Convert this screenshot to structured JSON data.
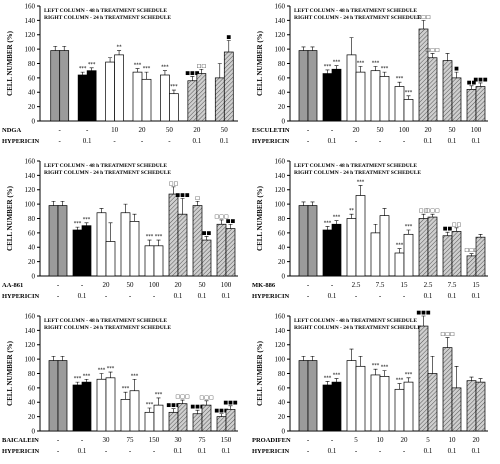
{
  "figure": {
    "colors": {
      "control": "#9b9b9b",
      "hypericin": "#000000",
      "treatment": "#ffffff",
      "combination": "#a8a8a8",
      "axis": "#000000"
    },
    "legend_note": "Bars are paired per concentration: left bar = 48 h schedule, right bar = 24 h schedule"
  },
  "chart_data": [
    {
      "type": "bar",
      "title": "LEFT COLUMN - 48 h TREATMENT SCHEDULE",
      "subtitle": "RIGHT COLUMN - 24 h TREATMENT SCHEDULE",
      "ylabel": "CELL NUMBER (%)",
      "ylim": [
        0,
        160
      ],
      "yticks": [
        "0",
        "20",
        "40",
        "60",
        "80",
        "100",
        "120",
        "140",
        "160"
      ],
      "row_labels": [
        "NDGA",
        "HYPERICIN"
      ],
      "categories": [
        {
          "drug": "-",
          "hyp": "-",
          "kind": "control",
          "v48": 98,
          "v24": 98,
          "e48": 6,
          "e24": 6,
          "s48": "",
          "s24": ""
        },
        {
          "drug": "-",
          "hyp": "0.1",
          "kind": "hypericin",
          "v48": 64,
          "v24": 70,
          "e48": 4,
          "e24": 4,
          "s48": "***",
          "s24": "***"
        },
        {
          "drug": "10",
          "hyp": "-",
          "kind": "treatment",
          "v48": 82,
          "v24": 92,
          "e48": 6,
          "e24": 6,
          "s48": "",
          "s24": "**"
        },
        {
          "drug": "20",
          "hyp": "-",
          "kind": "treatment",
          "v48": 68,
          "v24": 58,
          "e48": 5,
          "e24": 10,
          "s48": "***",
          "s24": "***"
        },
        {
          "drug": "50",
          "hyp": "-",
          "kind": "treatment",
          "v48": 64,
          "v24": 38,
          "e48": 6,
          "e24": 5,
          "s48": "***",
          "s24": "***"
        },
        {
          "drug": "20",
          "hyp": "0.1",
          "kind": "combination",
          "v48": 56,
          "v24": 66,
          "e48": 6,
          "e24": 6,
          "s48": "■■■",
          "s24": "□□"
        },
        {
          "drug": "50",
          "hyp": "0.1",
          "kind": "combination",
          "v48": 60,
          "v24": 96,
          "e48": 20,
          "e24": 16,
          "s48": "",
          "s24": "■"
        }
      ]
    },
    {
      "type": "bar",
      "title": "LEFT COLUMN - 48 h TREATMENT SCHEDULE",
      "subtitle": "RIGHT COLUMN - 24 h TREATMENT SCHEDULE",
      "ylabel": "CELL NUMBER (%)",
      "ylim": [
        0,
        160
      ],
      "yticks": [
        "0",
        "20",
        "40",
        "60",
        "80",
        "100",
        "120",
        "140",
        "160"
      ],
      "row_labels": [
        "ESCULETIN",
        "HYPERICIN"
      ],
      "categories": [
        {
          "drug": "-",
          "hyp": "-",
          "kind": "control",
          "v48": 98,
          "v24": 98,
          "e48": 5,
          "e24": 5,
          "s48": "",
          "s24": ""
        },
        {
          "drug": "-",
          "hyp": "0.1",
          "kind": "hypericin",
          "v48": 66,
          "v24": 72,
          "e48": 5,
          "e24": 5,
          "s48": "***",
          "s24": "***"
        },
        {
          "drug": "20",
          "hyp": "-",
          "kind": "treatment",
          "v48": 92,
          "v24": 68,
          "e48": 24,
          "e24": 8,
          "s48": "",
          "s24": "***"
        },
        {
          "drug": "50",
          "hyp": "-",
          "kind": "treatment",
          "v48": 70,
          "v24": 62,
          "e48": 6,
          "e24": 6,
          "s48": "***",
          "s24": "***"
        },
        {
          "drug": "100",
          "hyp": "-",
          "kind": "treatment",
          "v48": 48,
          "v24": 30,
          "e48": 6,
          "e24": 5,
          "s48": "***",
          "s24": "***"
        },
        {
          "drug": "20",
          "hyp": "0.1",
          "kind": "combination",
          "v48": 128,
          "v24": 88,
          "e48": 12,
          "e24": 6,
          "s48": "□□□",
          "s24": "□□□"
        },
        {
          "drug": "50",
          "hyp": "0.1",
          "kind": "combination",
          "v48": 84,
          "v24": 60,
          "e48": 10,
          "e24": 8,
          "s48": "",
          "s24": "■"
        },
        {
          "drug": "100",
          "hyp": "0.1",
          "kind": "combination",
          "v48": 44,
          "v24": 48,
          "e48": 5,
          "e24": 5,
          "s48": "■■",
          "s24": "■■■"
        }
      ]
    },
    {
      "type": "bar",
      "title": "LEFT COLUMN - 48 h TREATMENT SCHEDULE",
      "subtitle": "RIGHT COLUMN - 24 h TREATMENT SCHEDULE",
      "ylabel": "CELL NUMBER (%)",
      "ylim": [
        0,
        160
      ],
      "yticks": [
        "0",
        "20",
        "40",
        "60",
        "80",
        "100",
        "120",
        "140",
        "160"
      ],
      "row_labels": [
        "AA-861",
        "HYPERICIN"
      ],
      "categories": [
        {
          "drug": "-",
          "hyp": "-",
          "kind": "control",
          "v48": 98,
          "v24": 98,
          "e48": 6,
          "e24": 6,
          "s48": "",
          "s24": ""
        },
        {
          "drug": "-",
          "hyp": "0.1",
          "kind": "hypericin",
          "v48": 64,
          "v24": 70,
          "e48": 4,
          "e24": 4,
          "s48": "***",
          "s24": "***"
        },
        {
          "drug": "20",
          "hyp": "-",
          "kind": "treatment",
          "v48": 88,
          "v24": 48,
          "e48": 6,
          "e24": 26,
          "s48": "",
          "s24": ""
        },
        {
          "drug": "50",
          "hyp": "-",
          "kind": "treatment",
          "v48": 88,
          "v24": 76,
          "e48": 12,
          "e24": 10,
          "s48": "",
          "s24": ""
        },
        {
          "drug": "100",
          "hyp": "-",
          "kind": "treatment",
          "v48": 42,
          "v24": 42,
          "e48": 8,
          "e24": 8,
          "s48": "***",
          "s24": "***"
        },
        {
          "drug": "20",
          "hyp": "0.1",
          "kind": "combination",
          "v48": 114,
          "v24": 86,
          "e48": 10,
          "e24": 22,
          "s48": "□□",
          "s24": "■■■"
        },
        {
          "drug": "50",
          "hyp": "0.1",
          "kind": "combination",
          "v48": 98,
          "v24": 50,
          "e48": 6,
          "e24": 5,
          "s48": "□",
          "s24": "■■"
        },
        {
          "drug": "100",
          "hyp": "0.1",
          "kind": "combination",
          "v48": 72,
          "v24": 66,
          "e48": 6,
          "e24": 6,
          "s48": "□□□",
          "s24": "■■"
        }
      ]
    },
    {
      "type": "bar",
      "title": "LEFT COLUMN - 48 h TREATMENT SCHEDULE",
      "subtitle": "RIGHT COLUMN - 24 h TREATMENT SCHEDULE",
      "ylabel": "CELL NUMBER (%)",
      "ylim": [
        0,
        160
      ],
      "yticks": [
        "0",
        "20",
        "40",
        "60",
        "80",
        "100",
        "120",
        "140",
        "160"
      ],
      "row_labels": [
        "MK-886",
        "HYPERICIN"
      ],
      "categories": [
        {
          "drug": "-",
          "hyp": "-",
          "kind": "control",
          "v48": 98,
          "v24": 98,
          "e48": 5,
          "e24": 5,
          "s48": "",
          "s24": ""
        },
        {
          "drug": "-",
          "hyp": "0.1",
          "kind": "hypericin",
          "v48": 64,
          "v24": 72,
          "e48": 5,
          "e24": 5,
          "s48": "***",
          "s24": "***"
        },
        {
          "drug": "2.5",
          "hyp": "-",
          "kind": "treatment",
          "v48": 80,
          "v24": 112,
          "e48": 6,
          "e24": 14,
          "s48": "**",
          "s24": "***"
        },
        {
          "drug": "7.5",
          "hyp": "-",
          "kind": "treatment",
          "v48": 60,
          "v24": 84,
          "e48": 12,
          "e24": 10,
          "s48": "",
          "s24": ""
        },
        {
          "drug": "15",
          "hyp": "-",
          "kind": "treatment",
          "v48": 32,
          "v24": 58,
          "e48": 6,
          "e24": 6,
          "s48": "***",
          "s24": "***"
        },
        {
          "drug": "2.5",
          "hyp": "0.1",
          "kind": "combination",
          "v48": 80,
          "v24": 82,
          "e48": 6,
          "e24": 4,
          "s48": "□□",
          "s24": "□□□"
        },
        {
          "drug": "7.5",
          "hyp": "0.1",
          "kind": "combination",
          "v48": 56,
          "v24": 62,
          "e48": 5,
          "e24": 5,
          "s48": "■■",
          "s24": "□□"
        },
        {
          "drug": "15",
          "hyp": "0.1",
          "kind": "combination",
          "v48": 28,
          "v24": 54,
          "e48": 3,
          "e24": 4,
          "s48": "□□□",
          "s24": ""
        }
      ]
    },
    {
      "type": "bar",
      "title": "LEFT COLUMN - 48 h TREATMENT SCHEDULE",
      "subtitle": "RIGHT COLUMN - 24 h TREATMENT SCHEDULE",
      "ylabel": "CELL NUMBER (%)",
      "ylim": [
        0,
        160
      ],
      "yticks": [
        "0",
        "20",
        "40",
        "60",
        "80",
        "100",
        "120",
        "140",
        "160"
      ],
      "row_labels": [
        "BAICALEIN",
        "HYPERICIN"
      ],
      "categories": [
        {
          "drug": "-",
          "hyp": "-",
          "kind": "control",
          "v48": 98,
          "v24": 98,
          "e48": 6,
          "e24": 6,
          "s48": "",
          "s24": ""
        },
        {
          "drug": "-",
          "hyp": "0.1",
          "kind": "hypericin",
          "v48": 64,
          "v24": 68,
          "e48": 4,
          "e24": 4,
          "s48": "***",
          "s24": "***"
        },
        {
          "drug": "30",
          "hyp": "-",
          "kind": "treatment",
          "v48": 72,
          "v24": 74,
          "e48": 8,
          "e24": 8,
          "s48": "***",
          "s24": "***"
        },
        {
          "drug": "75",
          "hyp": "-",
          "kind": "treatment",
          "v48": 44,
          "v24": 56,
          "e48": 10,
          "e24": 16,
          "s48": "***",
          "s24": "***"
        },
        {
          "drug": "150",
          "hyp": "-",
          "kind": "treatment",
          "v48": 26,
          "v24": 36,
          "e48": 6,
          "e24": 10,
          "s48": "***",
          "s24": "***"
        },
        {
          "drug": "30",
          "hyp": "0.1",
          "kind": "combination",
          "v48": 26,
          "v24": 38,
          "e48": 5,
          "e24": 5,
          "s48": "■■■",
          "s24": "□□□"
        },
        {
          "drug": "75",
          "hyp": "0.1",
          "kind": "combination",
          "v48": 24,
          "v24": 36,
          "e48": 5,
          "e24": 6,
          "s48": "■■■",
          "s24": "□□□"
        },
        {
          "drug": "150",
          "hyp": "0.1",
          "kind": "combination",
          "v48": 20,
          "v24": 30,
          "e48": 4,
          "e24": 5,
          "s48": "■■■",
          "s24": "■■■"
        }
      ]
    },
    {
      "type": "bar",
      "title": "LEFT COLUMN - 48 h TREATMENT SCHEDULE",
      "subtitle": "RIGHT COLUMN - 24 h TREATMENT SCHEDULE",
      "ylabel": "CELL NUMBER (%)",
      "ylim": [
        0,
        160
      ],
      "yticks": [
        "0",
        "20",
        "40",
        "60",
        "80",
        "100",
        "120",
        "140",
        "160"
      ],
      "row_labels": [
        "PROADIFEN",
        "HYPERICIN"
      ],
      "categories": [
        {
          "drug": "-",
          "hyp": "-",
          "kind": "control",
          "v48": 98,
          "v24": 98,
          "e48": 6,
          "e24": 6,
          "s48": "",
          "s24": ""
        },
        {
          "drug": "-",
          "hyp": "0.1",
          "kind": "hypericin",
          "v48": 64,
          "v24": 68,
          "e48": 5,
          "e24": 5,
          "s48": "***",
          "s24": "***"
        },
        {
          "drug": "5",
          "hyp": "-",
          "kind": "treatment",
          "v48": 98,
          "v24": 90,
          "e48": 16,
          "e24": 14,
          "s48": "",
          "s24": ""
        },
        {
          "drug": "10",
          "hyp": "-",
          "kind": "treatment",
          "v48": 78,
          "v24": 76,
          "e48": 8,
          "e24": 8,
          "s48": "***",
          "s24": "***"
        },
        {
          "drug": "20",
          "hyp": "-",
          "kind": "treatment",
          "v48": 58,
          "v24": 68,
          "e48": 8,
          "e24": 6,
          "s48": "***",
          "s24": "***"
        },
        {
          "drug": "5",
          "hyp": "0.1",
          "kind": "combination",
          "v48": 146,
          "v24": 80,
          "e48": 14,
          "e24": 24,
          "s48": "■■■",
          "s24": ""
        },
        {
          "drug": "10",
          "hyp": "0.1",
          "kind": "combination",
          "v48": 116,
          "v24": 60,
          "e48": 14,
          "e24": 30,
          "s48": "□□□",
          "s24": ""
        },
        {
          "drug": "20",
          "hyp": "0.1",
          "kind": "combination",
          "v48": 70,
          "v24": 68,
          "e48": 5,
          "e24": 5,
          "s48": "",
          "s24": ""
        }
      ]
    }
  ]
}
